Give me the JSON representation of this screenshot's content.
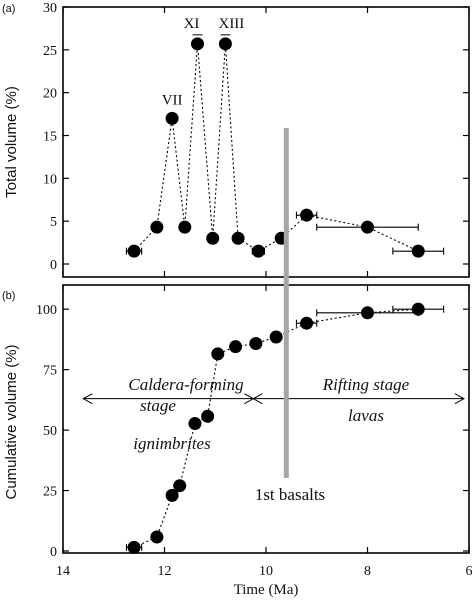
{
  "chart_data": [
    {
      "panel_label": "(a)",
      "type": "scatter",
      "ylabel": "Total volume (%)",
      "xlim": [
        14,
        6
      ],
      "ylim": [
        0,
        30
      ],
      "yticks": [
        0,
        5,
        10,
        15,
        20,
        25,
        30
      ],
      "dotted_line": true,
      "points": [
        {
          "x": 12.6,
          "y": 1.5,
          "xerr": 0.15
        },
        {
          "x": 12.15,
          "y": 4.3,
          "xerr": 0.1
        },
        {
          "x": 11.85,
          "y": 17.0
        },
        {
          "x": 11.6,
          "y": 4.3,
          "xerr": 0.1
        },
        {
          "x": 11.35,
          "y": 25.7,
          "xerr": 0.08
        },
        {
          "x": 11.05,
          "y": 3.0
        },
        {
          "x": 10.8,
          "y": 25.7,
          "xerr": 0.08
        },
        {
          "x": 10.55,
          "y": 3.0,
          "xerr": 0.07
        },
        {
          "x": 10.15,
          "y": 1.5,
          "xerr": 0.12
        },
        {
          "x": 9.7,
          "y": 3.0
        },
        {
          "x": 9.2,
          "y": 5.7,
          "xerr": 0.2
        },
        {
          "x": 8.0,
          "y": 4.3,
          "xerr": 1.0
        },
        {
          "x": 7.0,
          "y": 1.5,
          "xerr": 0.5
        }
      ],
      "annotations": [
        {
          "text": "VII",
          "x": 11.85,
          "y": 17.0
        },
        {
          "text": "XI",
          "x": 11.35,
          "y": 25.7
        },
        {
          "text": "XIII",
          "x": 10.8,
          "y": 25.7
        }
      ]
    },
    {
      "panel_label": "(b)",
      "type": "scatter",
      "xlabel": "Time (Ma)",
      "ylabel": "Cumulative volume (%)",
      "xlim": [
        14,
        6
      ],
      "ylim": [
        0,
        110
      ],
      "xticks": [
        14,
        12,
        10,
        8,
        6
      ],
      "yticks": [
        0,
        25,
        50,
        75,
        100
      ],
      "dotted_line": true,
      "points": [
        {
          "x": 12.6,
          "y": 1.5,
          "xerr": 0.15
        },
        {
          "x": 12.15,
          "y": 5.8,
          "xerr": 0.1
        },
        {
          "x": 11.85,
          "y": 23.0
        },
        {
          "x": 11.7,
          "y": 27.0
        },
        {
          "x": 11.4,
          "y": 52.7
        },
        {
          "x": 11.15,
          "y": 55.7
        },
        {
          "x": 10.95,
          "y": 81.5
        },
        {
          "x": 10.6,
          "y": 84.5
        },
        {
          "x": 10.2,
          "y": 85.8
        },
        {
          "x": 9.8,
          "y": 88.5
        },
        {
          "x": 9.2,
          "y": 94.2,
          "xerr": 0.2
        },
        {
          "x": 8.0,
          "y": 98.5,
          "xerr": 1.0
        },
        {
          "x": 7.0,
          "y": 100.0,
          "xerr": 0.5
        }
      ],
      "annotations": [
        {
          "text": "Caldera-forming",
          "style": "italic"
        },
        {
          "text": "stage",
          "style": "italic"
        },
        {
          "text": "ignimbrites",
          "style": "italic"
        },
        {
          "text": "Rifting stage",
          "style": "italic"
        },
        {
          "text": "lavas",
          "style": "italic"
        },
        {
          "text": "1st basalts"
        }
      ],
      "arrows": [
        {
          "from_x": 13.6,
          "to_x": 10.25,
          "y": 63
        },
        {
          "from_x": 10.25,
          "to_x": 6.1,
          "y": 63
        }
      ]
    }
  ],
  "marker_line": {
    "x": 9.6,
    "color": "#a6a6a6"
  },
  "colors": {
    "points": "#000000",
    "axes": "#000000",
    "marker": "#a6a6a6"
  }
}
